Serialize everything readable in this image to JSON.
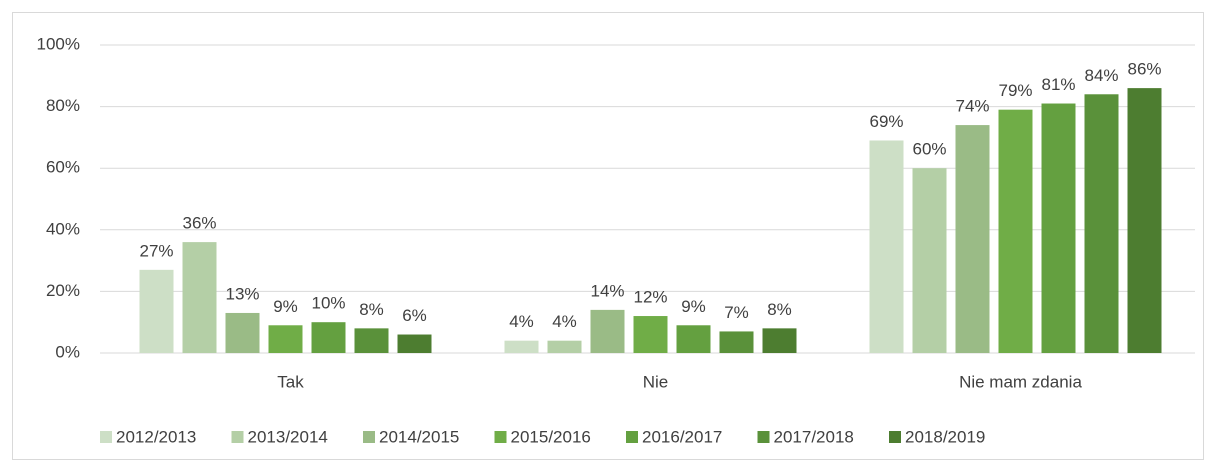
{
  "chart_data": {
    "type": "bar",
    "categories": [
      "Tak",
      "Nie",
      "Nie mam zdania"
    ],
    "series": [
      {
        "name": "2012/2013",
        "color": "#cddfc6",
        "values": [
          27,
          4,
          69
        ],
        "value_labels": [
          "27%",
          "4%",
          "69%"
        ]
      },
      {
        "name": "2013/2014",
        "color": "#b4cfa6",
        "values": [
          36,
          4,
          60
        ],
        "value_labels": [
          "36%",
          "4%",
          "60%"
        ]
      },
      {
        "name": "2014/2015",
        "color": "#9abb86",
        "values": [
          13,
          14,
          74
        ],
        "value_labels": [
          "13%",
          "14%",
          "74%"
        ]
      },
      {
        "name": "2015/2016",
        "color": "#70ad47",
        "values": [
          9,
          12,
          79
        ],
        "value_labels": [
          "9%",
          "12%",
          "79%"
        ]
      },
      {
        "name": "2016/2017",
        "color": "#64a040",
        "values": [
          10,
          9,
          81
        ],
        "value_labels": [
          "10%",
          "9%",
          "81%"
        ]
      },
      {
        "name": "2017/2018",
        "color": "#5a913a",
        "values": [
          8,
          7,
          84
        ],
        "value_labels": [
          "8%",
          "7%",
          "84%"
        ]
      },
      {
        "name": "2018/2019",
        "color": "#4d7d30",
        "values": [
          6,
          8,
          86
        ],
        "value_labels": [
          "6%",
          "8%",
          "86%"
        ]
      }
    ],
    "ylim": [
      0,
      100
    ],
    "yticks": [
      {
        "value": 0,
        "label": "0%"
      },
      {
        "value": 20,
        "label": "20%"
      },
      {
        "value": 40,
        "label": "40%"
      },
      {
        "value": 60,
        "label": "60%"
      },
      {
        "value": 80,
        "label": "80%"
      },
      {
        "value": 100,
        "label": "100%"
      }
    ],
    "grid": true,
    "legend": "bottom"
  }
}
